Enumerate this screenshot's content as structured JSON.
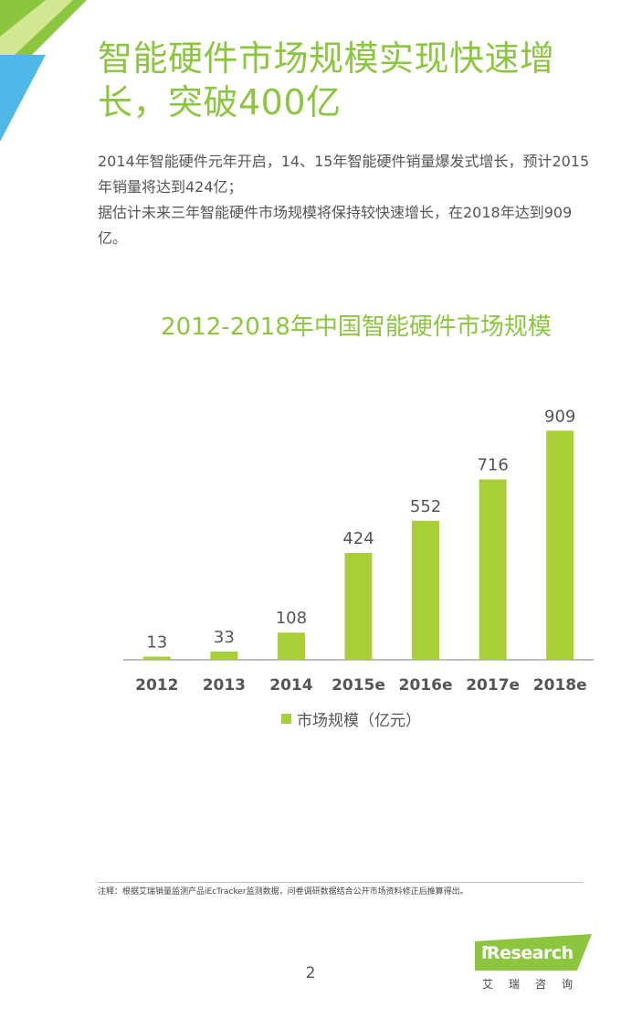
{
  "colors": {
    "accent": "#8cc63f",
    "bar": "#a8cf38",
    "text": "#555555",
    "corner_green": "#8cc63f",
    "corner_blue": "#4fb8e8",
    "logo_green": "#8cc63f"
  },
  "page": {
    "title": "智能硬件市场规模实现快速增长，突破400亿",
    "intro_1": "2014年智能硬件元年开启，14、15年智能硬件销量爆发式增长，预计2015年销量将达到424亿；",
    "intro_2": "据估计未来三年智能硬件市场规模将保持较快速增长，在2018年达到909亿。",
    "footnote": "注释：根据艾瑞销量监测产品iEcTracker监测数据，问卷调研数据结合公开市场资料修正后推算得出。",
    "page_number": "2"
  },
  "logo": {
    "text": "iResearch",
    "cn": "艾瑞咨询"
  },
  "chart_data": {
    "type": "bar",
    "title": "2012-2018年中国智能硬件市场规模",
    "categories": [
      "2012",
      "2013",
      "2014",
      "2015e",
      "2016e",
      "2017e",
      "2018e"
    ],
    "series": [
      {
        "name": "市场规模（亿元）",
        "values": [
          13,
          33,
          108,
          424,
          552,
          716,
          909
        ]
      }
    ],
    "legend": "bottom",
    "grid": false,
    "ylim": [
      0,
      950
    ]
  }
}
